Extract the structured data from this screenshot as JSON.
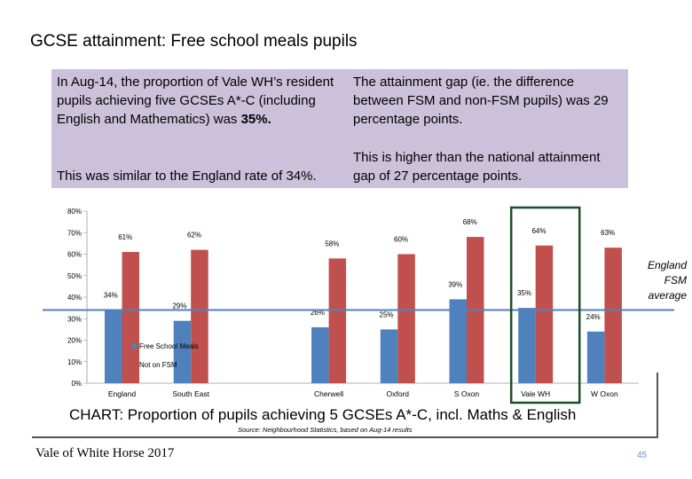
{
  "slide": {
    "title": "GCSE attainment: Free school meals pupils",
    "info_left_1_pre": "In Aug-14, the proportion of Vale WH’s resident pupils achieving five GCSEs A*-C (including English and Mathematics) was ",
    "info_left_1_bold": "35%.",
    "info_left_2": "This was similar to the England rate of 34%.",
    "info_right_1": "The attainment gap (ie. the difference between FSM and non-FSM pupils) was 29 percentage points.",
    "info_right_2": "This is higher than the national attainment gap of 27 percentage points.",
    "england_fsm_note": "England FSM average",
    "chart_caption": "CHART: Proportion of pupils achieving 5 GCSEs A*-C, incl. Maths & English",
    "source": "Source: Neighbourhood Statistics, based on Aug-14 results",
    "footer": "Vale of White Horse 2017",
    "page_number": "45"
  },
  "chart_data": {
    "type": "bar",
    "categories": [
      "England",
      "South East",
      "",
      "Cherwell",
      "Oxford",
      "S Oxon",
      "Vale WH",
      "W Oxon"
    ],
    "series": [
      {
        "name": "Free School Meals",
        "color": "#4f81bd",
        "values": [
          34,
          29,
          null,
          26,
          25,
          39,
          35,
          24
        ]
      },
      {
        "name": "Not on FSM",
        "color": "#c0504d",
        "values": [
          61,
          62,
          null,
          58,
          60,
          68,
          64,
          63
        ]
      }
    ],
    "ylim": [
      0,
      80
    ],
    "yticks": [
      "0%",
      "10%",
      "20%",
      "30%",
      "40%",
      "50%",
      "60%",
      "70%",
      "80%"
    ],
    "reference_line": {
      "value": 34,
      "color": "#4f81bd"
    },
    "highlight_category": "Vale WH",
    "highlight_color": "#1e4d2b",
    "legend_position": "inside-left"
  }
}
